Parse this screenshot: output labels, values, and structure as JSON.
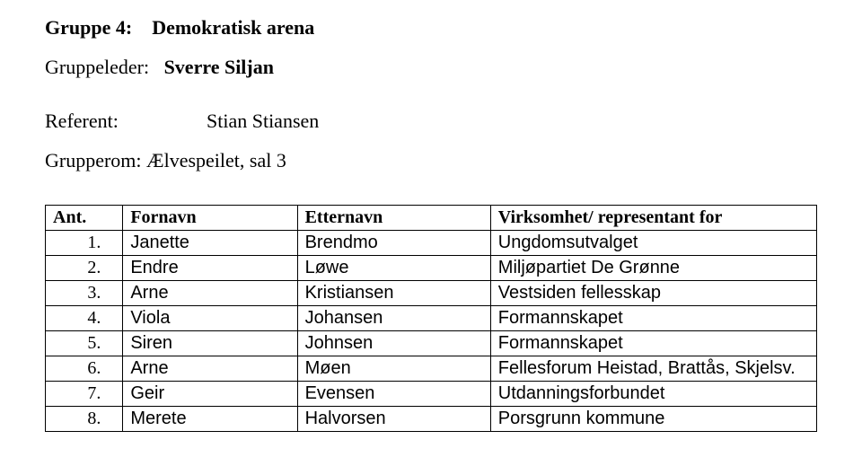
{
  "heading": {
    "group_prefix": "Gruppe 4:",
    "group_title": "Demokratisk arena"
  },
  "leader": {
    "label": "Gruppeleder:",
    "name": "Sverre Siljan"
  },
  "referent": {
    "label": "Referent:",
    "name": "Stian Stiansen"
  },
  "room": {
    "label": "Grupperom:",
    "value": "Ælvespeilet, sal 3"
  },
  "table": {
    "headers": {
      "num": "Ant.",
      "fornavn": "Fornavn",
      "etternavn": "Etternavn",
      "virksomhet": "Virksomhet/ representant for"
    },
    "rows": [
      {
        "n": "1.",
        "fn": "Janette",
        "en": "Brendmo",
        "v": "Ungdomsutvalget"
      },
      {
        "n": "2.",
        "fn": "Endre",
        "en": "Løwe",
        "v": "Miljøpartiet De Grønne"
      },
      {
        "n": "3.",
        "fn": "Arne",
        "en": "Kristiansen",
        "v": "Vestsiden fellesskap"
      },
      {
        "n": "4.",
        "fn": "Viola",
        "en": "Johansen",
        "v": "Formannskapet"
      },
      {
        "n": "5.",
        "fn": "Siren",
        "en": "Johnsen",
        "v": "Formannskapet"
      },
      {
        "n": "6.",
        "fn": "Arne",
        "en": "Møen",
        "v": "Fellesforum Heistad, Brattås, Skjelsv."
      },
      {
        "n": "7.",
        "fn": "Geir",
        "en": "Evensen",
        "v": "Utdanningsforbundet"
      },
      {
        "n": "8.",
        "fn": "Merete",
        "en": "Halvorsen",
        "v": "Porsgrunn kommune"
      }
    ]
  },
  "colors": {
    "text": "#000000",
    "background": "#ffffff",
    "border": "#000000"
  }
}
